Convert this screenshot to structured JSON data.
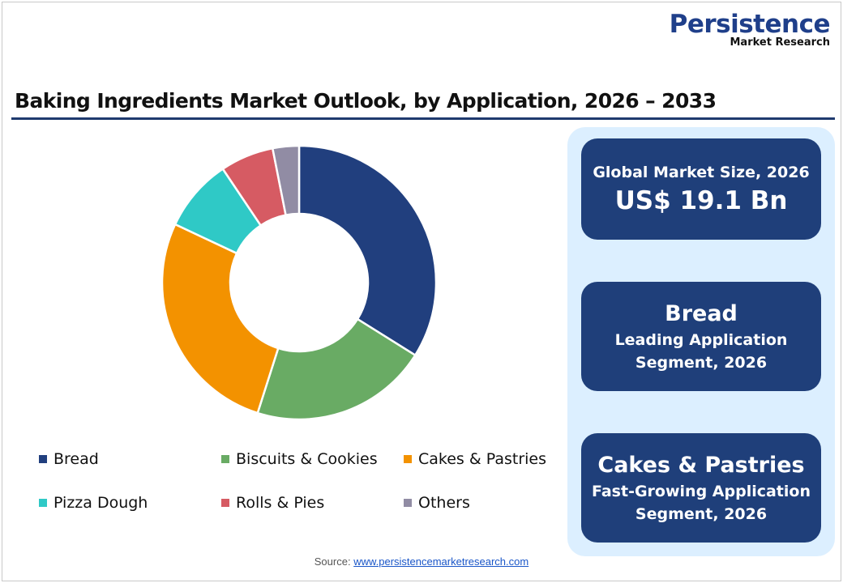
{
  "logo": {
    "line1": "Persistence",
    "line2": "Market Research"
  },
  "title": "Baking Ingredients Market Outlook, by Application, 2026 – 2033",
  "chart_data": {
    "type": "pie",
    "donut": true,
    "categories": [
      "Bread",
      "Biscuits & Cookies",
      "Cakes & Pastries",
      "Pizza Dough",
      "Rolls & Pies",
      "Others"
    ],
    "values": [
      33.9,
      21.0,
      27.1,
      8.6,
      6.3,
      3.1
    ],
    "colors": [
      "#213f7e",
      "#69ab64",
      "#f39200",
      "#2fc9c6",
      "#d65b63",
      "#918ca4"
    ],
    "legend_position": "bottom"
  },
  "cards": [
    {
      "line1": "Global Market Size, 2026",
      "line2": "US$ 19.1 Bn"
    },
    {
      "line1": "Bread",
      "line2": "Leading Application",
      "line3": "Segment, 2026"
    },
    {
      "line1": "Cakes & Pastries",
      "line2": "Fast-Growing Application",
      "line3": "Segment, 2026"
    }
  ],
  "source": {
    "label": "Source: ",
    "link": "www.persistencemarketresearch.com"
  }
}
